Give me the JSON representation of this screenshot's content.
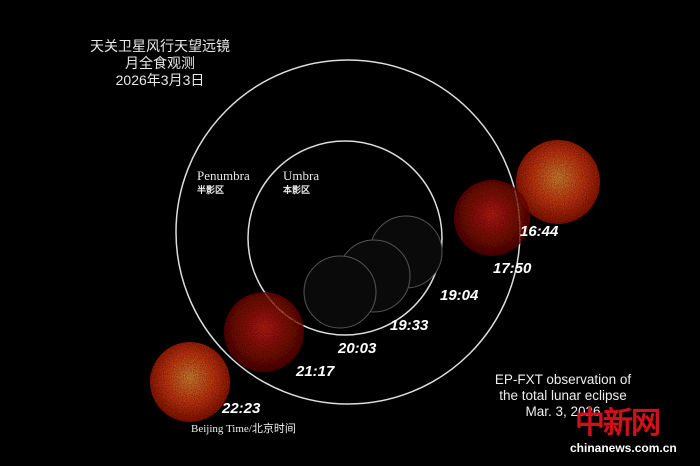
{
  "title_lines": [
    "天关卫星风行天望远镜",
    "月全食观测",
    "2026年3月3日"
  ],
  "zones": {
    "penumbra": {
      "en": "Penumbra",
      "cn": "半影区"
    },
    "umbra": {
      "en": "Umbra",
      "cn": "本影区"
    }
  },
  "times": [
    "16:44",
    "17:50",
    "19:04",
    "19:33",
    "20:03",
    "21:17",
    "22:23"
  ],
  "time_zone_label": "Beijing Time/北京时间",
  "caption": [
    "EP-FXT observation of",
    "the total lunar eclipse",
    "Mar. 3, 2026"
  ],
  "watermark": {
    "logo": "中新网",
    "site": "chinanews.com.cn"
  },
  "colors": {
    "moon_bright": "#ff5a1a",
    "moon_core": "#ffb040",
    "background": "#000000"
  }
}
